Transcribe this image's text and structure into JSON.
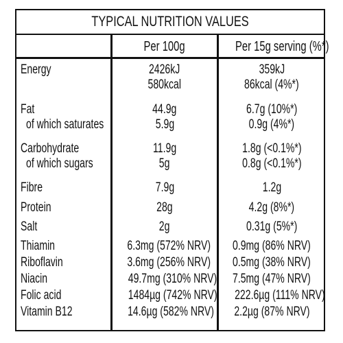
{
  "title": "TYPICAL NUTRITION VALUES",
  "headers": {
    "per100": "Per 100g",
    "perServing": "Per 15g serving (%*)"
  },
  "rows": {
    "energy_kj": {
      "name": "Energy",
      "per100": "2426kJ",
      "serving": "359kJ"
    },
    "energy_kcal": {
      "name": "",
      "per100": "580kcal",
      "serving": "86kcal (4%*)"
    },
    "fat": {
      "name": "Fat",
      "per100": "44.9g",
      "serving": "6.7g (10%*)"
    },
    "saturates": {
      "name": "of which saturates",
      "per100": "5.9g",
      "serving": "0.9g (4%*)"
    },
    "carbohydrate": {
      "name": "Carbohydrate",
      "per100": "11.9g",
      "serving": "1.8g (<0.1%*)"
    },
    "sugars": {
      "name": "of which sugars",
      "per100": "5g",
      "serving": "0.8g (<0.1%*)"
    },
    "fibre": {
      "name": "Fibre",
      "per100": "7.9g",
      "serving": "1.2g"
    },
    "protein": {
      "name": "Protein",
      "per100": "28g",
      "serving": "4.2g (8%*)"
    },
    "salt": {
      "name": "Salt",
      "per100": "2g",
      "serving": "0.31g (5%*)"
    },
    "thiamin": {
      "name": "Thiamin",
      "per100": "6.3mg (572% NRV)",
      "serving": "0.9mg (86% NRV)"
    },
    "riboflavin": {
      "name": "Riboflavin",
      "per100": "3.6mg (256% NRV)",
      "serving": "0.5mg (38% NRV)"
    },
    "niacin": {
      "name": "Niacin",
      "per100": "49.7mg (310% NRV)",
      "serving": "7.5mg (47% NRV)"
    },
    "folic_acid": {
      "name": "Folic acid",
      "per100": "1484µg (742% NRV)",
      "serving": "222.6µg (111% NRV)"
    },
    "vitamin_b12": {
      "name": "Vitamin B12",
      "per100": "14.6µg (582% NRV)",
      "serving": "2.2µg (87% NRV)"
    }
  }
}
